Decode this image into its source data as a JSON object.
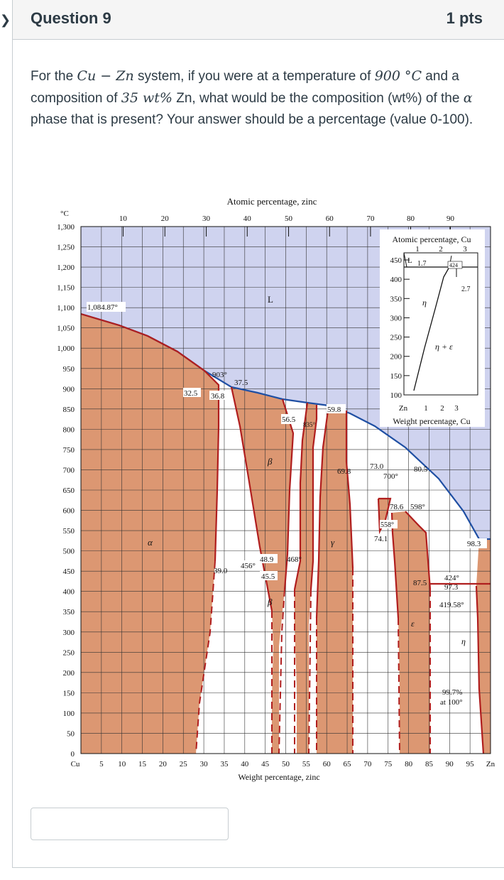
{
  "question": {
    "title": "Question 9",
    "points": "1 pts",
    "text_pre": "For the ",
    "system": "Cu − Zn",
    "text_mid1": " system, if you were at a temperature of ",
    "temperature": "900 °C",
    "text_mid2": " and a composition of ",
    "composition": "35 wt%",
    "text_mid3": " Zn, what would be the composition (wt%) of the ",
    "phase": "α",
    "text_post": " phase that is present? Your answer should be a percentage (value 0-100)."
  },
  "answer": {
    "placeholder": ""
  },
  "diagram": {
    "top_axis_title": "Atomic percentage, zinc",
    "top_ticks": [
      "10",
      "20",
      "30",
      "40",
      "50",
      "60",
      "70",
      "80",
      "90"
    ],
    "bottom_axis_title": "Weight percentage, zinc",
    "bottom_ticks": [
      "Cu",
      "5",
      "10",
      "15",
      "20",
      "25",
      "30",
      "35",
      "40",
      "45",
      "50",
      "55",
      "60",
      "65",
      "70",
      "75",
      "80",
      "85",
      "90",
      "95",
      "Zn"
    ],
    "y_unit": "°C",
    "y_ticks": [
      "1,300",
      "1,250",
      "1,200",
      "1,150",
      "1,100",
      "1,050",
      "1,000",
      "950",
      "900",
      "850",
      "800",
      "750",
      "700",
      "650",
      "600",
      "550",
      "500",
      "450",
      "400",
      "350",
      "300",
      "250",
      "200",
      "150",
      "100",
      "50",
      "0"
    ],
    "y_range": [
      0,
      1300
    ],
    "x_range": [
      0,
      100
    ],
    "labels": {
      "cu_melt": "1,084.87°",
      "t903": "903°",
      "c375": "37.5",
      "c325": "32.5",
      "c368": "36.8",
      "L": "L",
      "c565": "56.5",
      "t835": "835°",
      "c598": "59.8",
      "beta": "β",
      "c698": "69.8",
      "c730": "73.0",
      "t700": "700°",
      "c805": "80.5",
      "c786": "78.6",
      "t598": "598°",
      "t558": "558°",
      "c741": "74.1",
      "alpha": "α",
      "gamma": "γ",
      "c983": "98.3",
      "c390": "39.0",
      "t456": "456°",
      "c489": "48.9",
      "t468": "468°",
      "c455": "45.5",
      "beta2": "β",
      "c875": "87.5",
      "t424": "424°",
      "c973": "97.3",
      "t41958": "419.58°",
      "epsilon": "ε",
      "eta": "η",
      "c997": "99.7%",
      "at100": "at 100°"
    },
    "inset": {
      "title": "Atomic percentage, Cu",
      "top_ticks": [
        "1",
        "2",
        "3"
      ],
      "y_ticks": [
        "450",
        "400",
        "350",
        "300",
        "250",
        "200",
        "150",
        "100"
      ],
      "bottom_ticks": [
        "Zn",
        "1",
        "2",
        "3"
      ],
      "bottom_title": "Weight percentage, Cu",
      "L": "L",
      "c17": "1.7",
      "t424": "424",
      "c27": "2.7",
      "eta": "η",
      "eta_eps": "η + ε"
    },
    "colors": {
      "liquid": "#cfd3ef",
      "solid": "#dc9772",
      "liquidus": "#1f4fa3",
      "boundary": "#b01e1e"
    }
  }
}
